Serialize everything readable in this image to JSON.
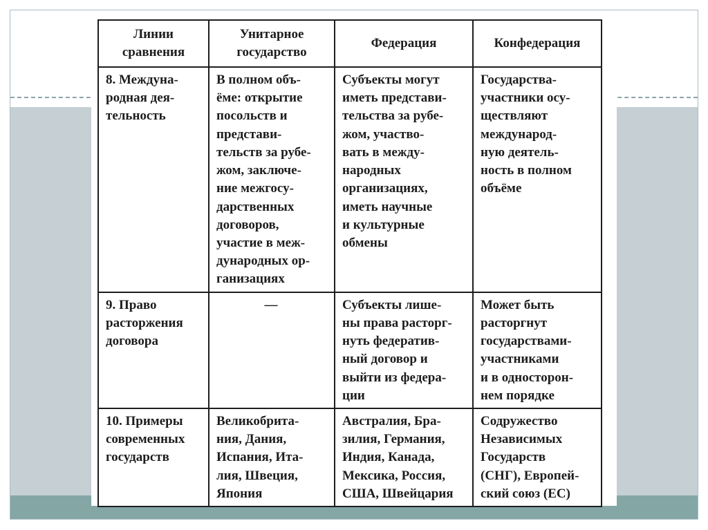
{
  "slide": {
    "panel_color": "#c5cfd4",
    "band_color": "#84a7a6",
    "border_color": "#a9bec8",
    "table_border_color": "#1d1d1d"
  },
  "table": {
    "headers": [
      "Линии\nсравнения",
      "Унитарное\nгосударство",
      "Федерация",
      "Конфедерация"
    ],
    "rows": [
      {
        "cells": [
          "8. Междуна-\nродная дея-\nтельность",
          "В полном объ-\nёме: открытие\nпосольств и\nпредстави-\nтельств за рубе-\nжом, заключе-\nние межгосу-\nдарственных\nдоговоров,\nучастие в меж-\nдународных ор-\nганизациях",
          "Субъекты могут\nиметь представи-\nтельства за рубе-\nжом, участво-\nвать в между-\nнародных\nорганизациях,\nиметь научные\nи культурные\nобмены",
          "Государства-\nучастники осу-\nществляют\nмеждународ-\nную деятель-\nность в полном\nобъёме"
        ]
      },
      {
        "cells": [
          "9. Право\nрасторжения\nдоговора",
          "—",
          "Субъекты лише-\nны права расторг-\nнуть федератив-\nный договор и\nвыйти из федера-\nции",
          "Может быть\nрасторгнут\nгосударствами-\nучастниками\nи в односторон-\nнем порядке"
        ]
      },
      {
        "cells": [
          "10. Примеры\nсовременных\nгосударств",
          "Великобрита-\nния, Дания,\nИспания, Ита-\nлия, Швеция,\nЯпония",
          "Австралия, Бра-\nзилия, Германия,\nИндия, Канада,\nМексика, Россия,\nСША, Швейцария",
          "Содружество\nНезависимых\nГосударств\n(СНГ), Европей-\nский союз (ЕС)"
        ]
      }
    ]
  }
}
